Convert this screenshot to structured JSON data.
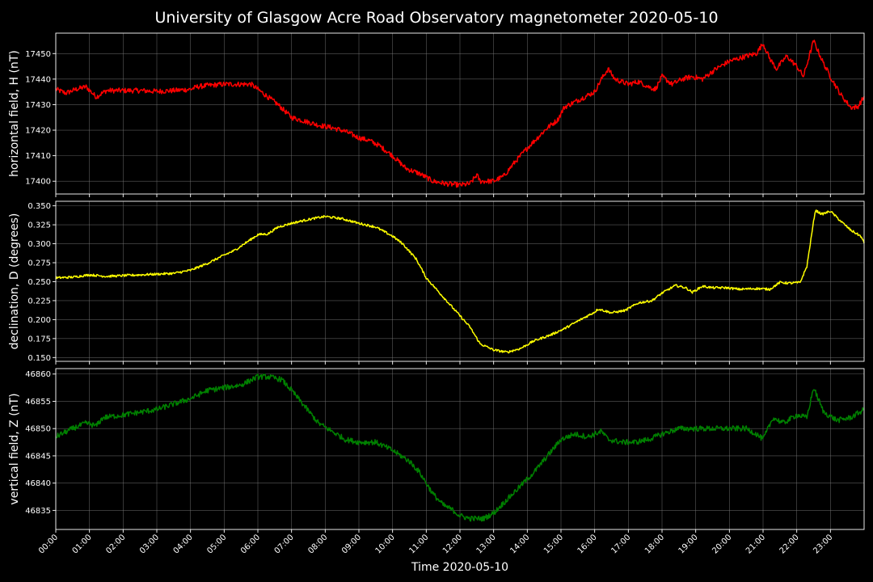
{
  "chart_data": {
    "type": "line",
    "title": "University of Glasgow Acre Road Observatory magnetometer 2020-05-10",
    "xlabel": "Time 2020-05-10",
    "x_ticks": [
      "00:00",
      "01:00",
      "02:00",
      "03:00",
      "04:00",
      "05:00",
      "06:00",
      "07:00",
      "08:00",
      "09:00",
      "10:00",
      "11:00",
      "12:00",
      "13:00",
      "14:00",
      "15:00",
      "16:00",
      "17:00",
      "18:00",
      "19:00",
      "20:00",
      "21:00",
      "22:00",
      "23:00"
    ],
    "xlim_hours": [
      0,
      24
    ],
    "grid": true,
    "panels": [
      {
        "ylabel": "horizontal field, H (nT)",
        "color": "#ff0000",
        "ylim": [
          17395,
          17458
        ],
        "yticks": [
          17400,
          17410,
          17420,
          17430,
          17440,
          17450
        ],
        "noise": 1.0,
        "series": [
          [
            0,
            17436
          ],
          [
            0.3,
            17434.5
          ],
          [
            0.6,
            17436
          ],
          [
            0.9,
            17437
          ],
          [
            1.2,
            17433
          ],
          [
            1.5,
            17435.5
          ],
          [
            2,
            17435.5
          ],
          [
            2.5,
            17435.5
          ],
          [
            3,
            17435.2
          ],
          [
            3.5,
            17435.5
          ],
          [
            4,
            17436
          ],
          [
            4.2,
            17437
          ],
          [
            4.5,
            17437.5
          ],
          [
            5,
            17438
          ],
          [
            5.5,
            17438
          ],
          [
            5.8,
            17438
          ],
          [
            6,
            17436
          ],
          [
            6.3,
            17433
          ],
          [
            6.6,
            17430
          ],
          [
            7,
            17425
          ],
          [
            7.4,
            17423.5
          ],
          [
            7.8,
            17422
          ],
          [
            8.2,
            17421
          ],
          [
            8.6,
            17419.5
          ],
          [
            9,
            17417
          ],
          [
            9.3,
            17416
          ],
          [
            9.6,
            17414
          ],
          [
            10,
            17410
          ],
          [
            10.4,
            17405
          ],
          [
            10.8,
            17403
          ],
          [
            11.2,
            17400
          ],
          [
            11.6,
            17399
          ],
          [
            12,
            17398.5
          ],
          [
            12.3,
            17399
          ],
          [
            12.5,
            17402.5
          ],
          [
            12.6,
            17400
          ],
          [
            13,
            17400
          ],
          [
            13.3,
            17402
          ],
          [
            13.6,
            17407
          ],
          [
            14,
            17413
          ],
          [
            14.3,
            17417
          ],
          [
            14.6,
            17421
          ],
          [
            14.9,
            17424
          ],
          [
            15.1,
            17429
          ],
          [
            15.4,
            17431
          ],
          [
            15.7,
            17433
          ],
          [
            16,
            17435
          ],
          [
            16.2,
            17440
          ],
          [
            16.4,
            17444
          ],
          [
            16.6,
            17440
          ],
          [
            17,
            17438
          ],
          [
            17.3,
            17439
          ],
          [
            17.6,
            17437
          ],
          [
            17.8,
            17436
          ],
          [
            18,
            17441
          ],
          [
            18.3,
            17438
          ],
          [
            18.6,
            17440
          ],
          [
            18.9,
            17441
          ],
          [
            19.2,
            17440
          ],
          [
            19.6,
            17444
          ],
          [
            20,
            17447
          ],
          [
            20.5,
            17449
          ],
          [
            20.8,
            17450
          ],
          [
            21,
            17454
          ],
          [
            21.2,
            17448
          ],
          [
            21.4,
            17444
          ],
          [
            21.7,
            17449
          ],
          [
            22,
            17445
          ],
          [
            22.2,
            17441
          ],
          [
            22.5,
            17455
          ],
          [
            22.8,
            17446
          ],
          [
            23,
            17441
          ],
          [
            23.3,
            17434
          ],
          [
            23.6,
            17429
          ],
          [
            23.8,
            17429
          ],
          [
            24,
            17433
          ]
        ]
      },
      {
        "ylabel": "declination, D (degrees)",
        "color": "#ffff00",
        "ylim": [
          0.145,
          0.356
        ],
        "yticks": [
          0.15,
          0.175,
          0.2,
          0.225,
          0.25,
          0.275,
          0.3,
          0.325,
          0.35
        ],
        "noise": 0.0015,
        "series": [
          [
            0,
            0.255
          ],
          [
            0.5,
            0.256
          ],
          [
            1,
            0.259
          ],
          [
            1.5,
            0.257
          ],
          [
            2,
            0.258
          ],
          [
            2.5,
            0.259
          ],
          [
            3,
            0.26
          ],
          [
            3.5,
            0.261
          ],
          [
            4,
            0.265
          ],
          [
            4.5,
            0.274
          ],
          [
            5,
            0.285
          ],
          [
            5.3,
            0.291
          ],
          [
            5.6,
            0.3
          ],
          [
            6,
            0.312
          ],
          [
            6.3,
            0.313
          ],
          [
            6.6,
            0.322
          ],
          [
            7,
            0.327
          ],
          [
            7.5,
            0.332
          ],
          [
            8,
            0.336
          ],
          [
            8.5,
            0.333
          ],
          [
            9,
            0.327
          ],
          [
            9.5,
            0.322
          ],
          [
            10,
            0.31
          ],
          [
            10.3,
            0.3
          ],
          [
            10.7,
            0.28
          ],
          [
            11,
            0.255
          ],
          [
            11.5,
            0.23
          ],
          [
            12,
            0.205
          ],
          [
            12.3,
            0.19
          ],
          [
            12.6,
            0.168
          ],
          [
            13,
            0.16
          ],
          [
            13.4,
            0.157
          ],
          [
            13.8,
            0.162
          ],
          [
            14.2,
            0.172
          ],
          [
            14.7,
            0.18
          ],
          [
            15.1,
            0.188
          ],
          [
            15.5,
            0.198
          ],
          [
            16,
            0.21
          ],
          [
            16.1,
            0.214
          ],
          [
            16.5,
            0.209
          ],
          [
            16.9,
            0.212
          ],
          [
            17.3,
            0.222
          ],
          [
            17.7,
            0.225
          ],
          [
            18,
            0.235
          ],
          [
            18.4,
            0.245
          ],
          [
            18.7,
            0.242
          ],
          [
            18.9,
            0.236
          ],
          [
            19.2,
            0.244
          ],
          [
            19.5,
            0.242
          ],
          [
            19.9,
            0.242
          ],
          [
            20.3,
            0.24
          ],
          [
            20.8,
            0.241
          ],
          [
            21.2,
            0.24
          ],
          [
            21.5,
            0.249
          ],
          [
            21.8,
            0.248
          ],
          [
            22.1,
            0.249
          ],
          [
            22.3,
            0.27
          ],
          [
            22.55,
            0.344
          ],
          [
            22.75,
            0.339
          ],
          [
            23,
            0.343
          ],
          [
            23.3,
            0.33
          ],
          [
            23.6,
            0.318
          ],
          [
            23.9,
            0.31
          ],
          [
            24,
            0.301
          ]
        ]
      },
      {
        "ylabel": "vertical field, Z (nT)",
        "color": "#008000",
        "ylim": [
          46831.5,
          46861
        ],
        "yticks": [
          46835,
          46840,
          46845,
          46850,
          46855,
          46860
        ],
        "noise": 0.5,
        "series": [
          [
            0,
            46848.5
          ],
          [
            0.5,
            46850
          ],
          [
            0.9,
            46851
          ],
          [
            1.2,
            46850.5
          ],
          [
            1.4,
            46852
          ],
          [
            2,
            46852.5
          ],
          [
            2.5,
            46853
          ],
          [
            3,
            46853.5
          ],
          [
            3.5,
            46854.5
          ],
          [
            4,
            46855.5
          ],
          [
            4.5,
            46857
          ],
          [
            5,
            46857.5
          ],
          [
            5.5,
            46858
          ],
          [
            6,
            46859.5
          ],
          [
            6.3,
            46859.5
          ],
          [
            6.7,
            46859
          ],
          [
            7,
            46857
          ],
          [
            7.4,
            46854
          ],
          [
            7.8,
            46851
          ],
          [
            8.2,
            46849.5
          ],
          [
            8.6,
            46848
          ],
          [
            9,
            46847.5
          ],
          [
            9.5,
            46847.5
          ],
          [
            10,
            46846
          ],
          [
            10.5,
            46844
          ],
          [
            10.8,
            46842
          ],
          [
            11.2,
            46838
          ],
          [
            11.5,
            46836
          ],
          [
            11.8,
            46835
          ],
          [
            12,
            46834
          ],
          [
            12.3,
            46833.5
          ],
          [
            12.7,
            46833.5
          ],
          [
            13,
            46834.5
          ],
          [
            13.4,
            46837
          ],
          [
            13.8,
            46839.5
          ],
          [
            14.2,
            46842
          ],
          [
            14.6,
            46845
          ],
          [
            15,
            46848
          ],
          [
            15.4,
            46849
          ],
          [
            15.8,
            46848.5
          ],
          [
            16.2,
            46849.5
          ],
          [
            16.4,
            46848
          ],
          [
            16.8,
            46847.5
          ],
          [
            17.2,
            46847.5
          ],
          [
            17.6,
            46848
          ],
          [
            18,
            46849
          ],
          [
            18.5,
            46850
          ],
          [
            19,
            46850
          ],
          [
            19.5,
            46850
          ],
          [
            20,
            46850
          ],
          [
            20.5,
            46850
          ],
          [
            20.8,
            46849
          ],
          [
            21,
            46848
          ],
          [
            21.3,
            46852
          ],
          [
            21.6,
            46851
          ],
          [
            22,
            46852.5
          ],
          [
            22.3,
            46852
          ],
          [
            22.5,
            46857.5
          ],
          [
            22.8,
            46853
          ],
          [
            23.2,
            46851.5
          ],
          [
            23.6,
            46852
          ],
          [
            24,
            46853.5
          ]
        ]
      }
    ]
  }
}
